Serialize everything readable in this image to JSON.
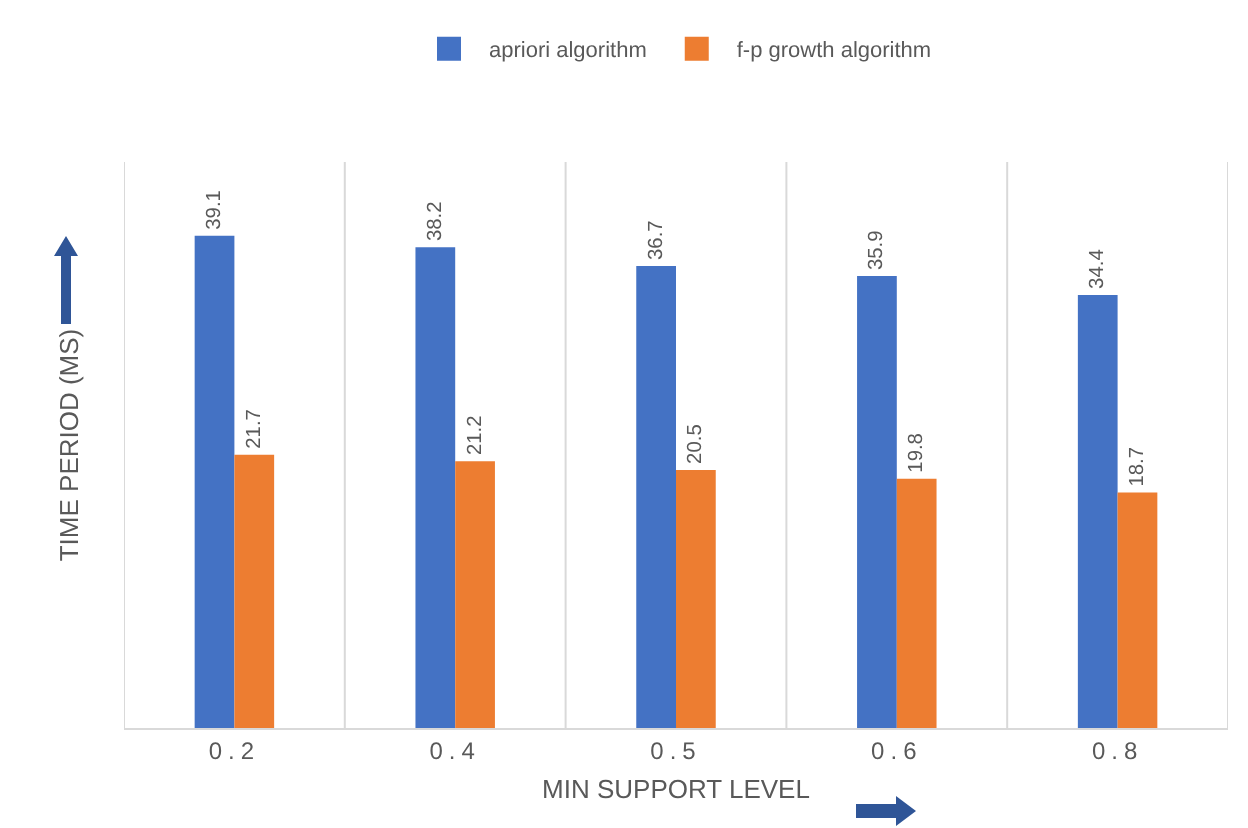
{
  "chart_data": {
    "type": "bar",
    "xlabel": "MIN SUPPORT LEVEL",
    "ylabel": "TIME PERIOD (MS)",
    "categories": [
      "0.2",
      "0.4",
      "0.5",
      "0.6",
      "0.8"
    ],
    "series": [
      {
        "name": "apriori algorithm",
        "color": "#4472c4",
        "values": [
          39.1,
          38.2,
          36.7,
          35.9,
          34.4
        ]
      },
      {
        "name": "f-p growth algorithm",
        "color": "#ed7d31",
        "values": [
          21.7,
          21.2,
          20.5,
          19.8,
          18.7
        ]
      }
    ],
    "data_labels": true,
    "grid": "x",
    "legend": "top"
  }
}
